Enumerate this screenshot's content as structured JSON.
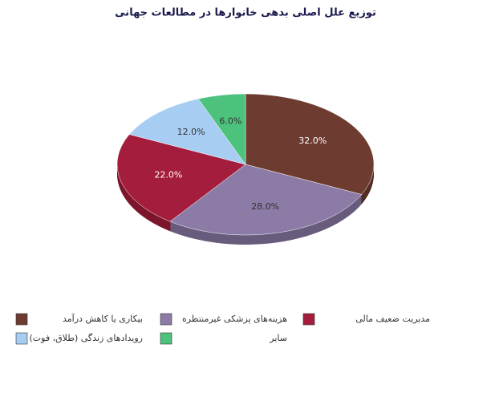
{
  "chart_data": {
    "type": "pie3d",
    "title": "توزیع علل اصلی بدهی خانوارها در مطالعات جهانی",
    "categories": [
      "بیکاری یا کاهش درآمد",
      "هزینه‌های پزشکی غیرمنتظره",
      "مدیریت ضعیف مالی",
      "رویدادهای زندگی (طلاق، فوت)",
      "سایر"
    ],
    "values": [
      32,
      28,
      22,
      12,
      6
    ],
    "value_labels": [
      "32.0%",
      "28.0%",
      "22.0%",
      "12.0%",
      "6.0%"
    ],
    "colors": [
      "#6e3b30",
      "#8b7ba6",
      "#a51d3c",
      "#a8cdf2",
      "#4cc27d"
    ]
  }
}
